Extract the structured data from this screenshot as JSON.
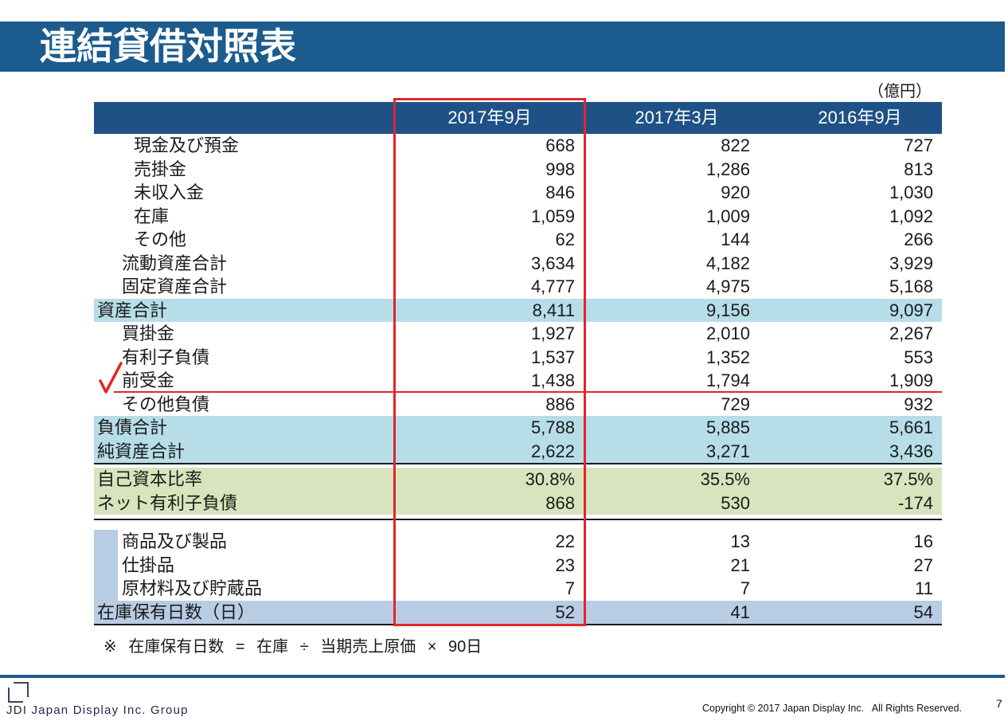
{
  "slide": {
    "title": "連結貸借対照表",
    "unit": "（億円）",
    "footnote": "※ 在庫保有日数 = 在庫 ÷ 当期売上原価 × 90日",
    "page_number": "7"
  },
  "footer": {
    "logo_text": "JDI Japan Display Inc. Group",
    "copyright": "Copyright © 2017 Japan Display Inc.   All Rights Reserved."
  },
  "balance_sheet": {
    "columns": [
      "2017年9月",
      "2017年3月",
      "2016年9月"
    ],
    "asset_items": [
      {
        "label": "現金及び預金",
        "values": [
          "668",
          "822",
          "727"
        ]
      },
      {
        "label": "売掛金",
        "values": [
          "998",
          "1,286",
          "813"
        ]
      },
      {
        "label": "未収入金",
        "values": [
          "846",
          "920",
          "1,030"
        ]
      },
      {
        "label": "在庫",
        "values": [
          "1,059",
          "1,009",
          "1,092"
        ]
      },
      {
        "label": "その他",
        "values": [
          "62",
          "144",
          "266"
        ]
      }
    ],
    "asset_subtotals": [
      {
        "label": "流動資産合計",
        "values": [
          "3,634",
          "4,182",
          "3,929"
        ]
      },
      {
        "label": "固定資産合計",
        "values": [
          "4,777",
          "4,975",
          "5,168"
        ]
      }
    ],
    "total_assets": {
      "label": "資産合計",
      "values": [
        "8,411",
        "9,156",
        "9,097"
      ]
    },
    "liability_items": [
      {
        "label": "買掛金",
        "values": [
          "1,927",
          "2,010",
          "2,267"
        ]
      },
      {
        "label": "有利子負債",
        "values": [
          "1,537",
          "1,352",
          "553"
        ]
      },
      {
        "label": "前受金",
        "values": [
          "1,438",
          "1,794",
          "1,909"
        ]
      },
      {
        "label": "その他負債",
        "values": [
          "886",
          "729",
          "932"
        ]
      }
    ],
    "totals": [
      {
        "label": "負債合計",
        "values": [
          "5,788",
          "5,885",
          "5,661"
        ]
      },
      {
        "label": "純資産合計",
        "values": [
          "2,622",
          "3,271",
          "3,436"
        ]
      }
    ],
    "ratios": [
      {
        "label": "自己資本比率",
        "values": [
          "30.8%",
          "35.5%",
          "37.5%"
        ]
      },
      {
        "label": "ネット有利子負債",
        "values": [
          "868",
          "530",
          "-174"
        ]
      }
    ],
    "inventory_items": [
      {
        "label": "商品及び製品",
        "values": [
          "22",
          "13",
          "16"
        ]
      },
      {
        "label": "仕掛品",
        "values": [
          "23",
          "21",
          "27"
        ]
      },
      {
        "label": "原材料及び貯蔵品",
        "values": [
          "7",
          "7",
          "11"
        ]
      }
    ],
    "inventory_days": {
      "label": "在庫保有日数（日）",
      "values": [
        "52",
        "41",
        "54"
      ]
    }
  },
  "colors": {
    "brand_blue": "#1c5b8d",
    "header_blue": "#1e5185",
    "total_row": "#b6dde8",
    "ratio_row": "#d7e4bd",
    "inventory_row": "#b8cce4",
    "annotation_red": "#e1262b"
  }
}
